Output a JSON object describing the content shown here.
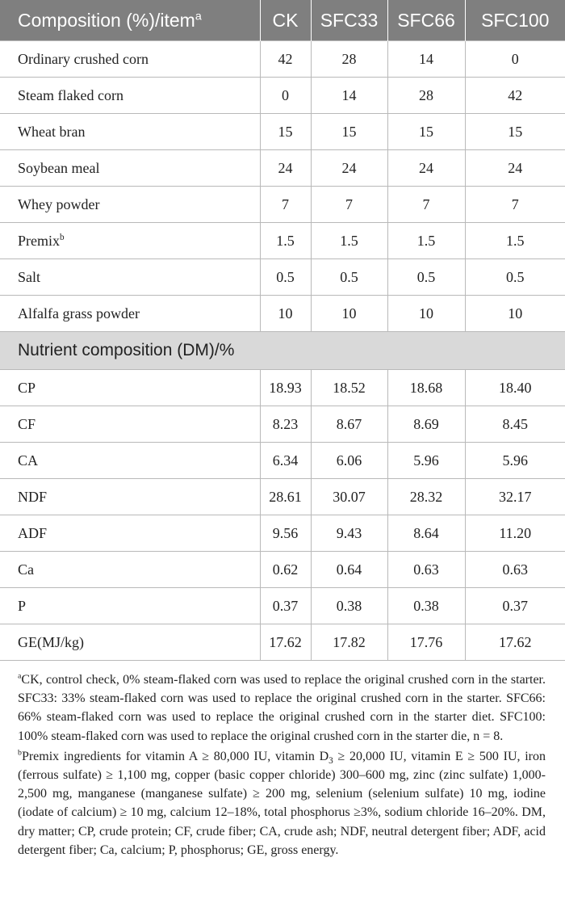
{
  "header": {
    "item_label": "Composition (%)/item",
    "item_sup": "a",
    "groups": [
      "CK",
      "SFC33",
      "SFC66",
      "SFC100"
    ]
  },
  "composition_rows": [
    {
      "label": "Ordinary crushed corn",
      "sup": "",
      "values": [
        "42",
        "28",
        "14",
        "0"
      ]
    },
    {
      "label": "Steam flaked corn",
      "sup": "",
      "values": [
        "0",
        "14",
        "28",
        "42"
      ]
    },
    {
      "label": "Wheat bran",
      "sup": "",
      "values": [
        "15",
        "15",
        "15",
        "15"
      ]
    },
    {
      "label": "Soybean meal",
      "sup": "",
      "values": [
        "24",
        "24",
        "24",
        "24"
      ]
    },
    {
      "label": "Whey powder",
      "sup": "",
      "values": [
        "7",
        "7",
        "7",
        "7"
      ]
    },
    {
      "label": "Premix",
      "sup": "b",
      "values": [
        "1.5",
        "1.5",
        "1.5",
        "1.5"
      ]
    },
    {
      "label": "Salt",
      "sup": "",
      "values": [
        "0.5",
        "0.5",
        "0.5",
        "0.5"
      ]
    },
    {
      "label": "Alfalfa grass powder",
      "sup": "",
      "values": [
        "10",
        "10",
        "10",
        "10"
      ]
    }
  ],
  "nutrient_section_label": "Nutrient composition (DM)/%",
  "nutrient_rows": [
    {
      "label": "CP",
      "values": [
        "18.93",
        "18.52",
        "18.68",
        "18.40"
      ]
    },
    {
      "label": "CF",
      "values": [
        "8.23",
        "8.67",
        "8.69",
        "8.45"
      ]
    },
    {
      "label": "CA",
      "values": [
        "6.34",
        "6.06",
        "5.96",
        "5.96"
      ]
    },
    {
      "label": "NDF",
      "values": [
        "28.61",
        "30.07",
        "28.32",
        "32.17"
      ]
    },
    {
      "label": "ADF",
      "values": [
        "9.56",
        "9.43",
        "8.64",
        "11.20"
      ]
    },
    {
      "label": "Ca",
      "values": [
        "0.62",
        "0.64",
        "0.63",
        "0.63"
      ]
    },
    {
      "label": "P",
      "values": [
        "0.37",
        "0.38",
        "0.38",
        "0.37"
      ]
    },
    {
      "label": "GE(MJ/kg)",
      "values": [
        "17.62",
        "17.82",
        "17.76",
        "17.62"
      ]
    }
  ],
  "footnotes": {
    "a_marker": "a",
    "a_text": "CK, control check, 0% steam-flaked corn was used to replace the original crushed corn in the starter. SFC33: 33% steam-flaked corn was used to replace the original crushed corn in the starter. SFC66: 66% steam-flaked corn was used to replace the original crushed corn in the starter diet. SFC100: 100% steam-flaked corn was used to replace the original crushed corn in the starter die, n = 8.",
    "b_marker": "b",
    "b_text_1": "Premix ingredients for vitamin A ≥ 80,000 IU, vitamin D",
    "b_sub": "3",
    "b_text_2": " ≥ 20,000 IU, vitamin E ≥ 500 IU, iron (ferrous sulfate) ≥ 1,100 mg, copper (basic copper chloride) 300–600 mg, zinc (zinc sulfate) 1,000-2,500 mg, manganese (manganese sulfate) ≥ 200 mg, selenium (selenium sulfate) 10 mg, iodine (iodate of calcium) ≥ 10 mg, calcium 12–18%, total phosphorus ≥3%, sodium chloride 16–20%. DM, dry matter; CP, crude protein; CF, crude fiber; CA, crude ash; NDF, neutral detergent fiber; ADF, acid detergent fiber; Ca, calcium; P, phosphorus; GE, gross energy."
  }
}
